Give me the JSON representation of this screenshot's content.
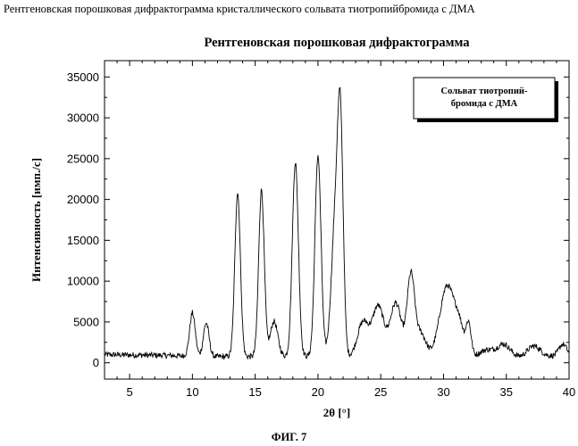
{
  "document": {
    "caption": "Рентгеновская порошковая дифрактограмма кристаллического сольвата тиотропийбромида с ДМА",
    "figure_label": "ФИГ. 7"
  },
  "chart_data": {
    "type": "line",
    "title": "Рентгеновская порошковая дифрактограмма",
    "xlabel": "2θ [°]",
    "ylabel": "Интенсивность [имп./с]",
    "xlim": [
      3,
      40
    ],
    "ylim": [
      -2000,
      37000
    ],
    "xticks": [
      5,
      10,
      15,
      20,
      25,
      30,
      35,
      40
    ],
    "yticks": [
      0,
      5000,
      10000,
      15000,
      20000,
      25000,
      30000,
      35000
    ],
    "grid": false,
    "legend": {
      "position": "top-right",
      "lines": [
        "Сольват тиотропий-",
        "бромида с ДМА"
      ]
    },
    "series": [
      {
        "name": "Сольват тиотропий-бромида с ДМА",
        "baseline": [
          [
            3,
            1000
          ],
          [
            8,
            900
          ],
          [
            12,
            750
          ],
          [
            16,
            750
          ],
          [
            21,
            800
          ],
          [
            23,
            700
          ],
          [
            26,
            500
          ],
          [
            30,
            600
          ],
          [
            33,
            900
          ],
          [
            36,
            700
          ],
          [
            40,
            900
          ]
        ],
        "peaks": [
          {
            "x": 10.0,
            "height": 5300,
            "width": 0.22
          },
          {
            "x": 11.1,
            "height": 4100,
            "width": 0.22
          },
          {
            "x": 13.6,
            "height": 20100,
            "width": 0.22
          },
          {
            "x": 15.5,
            "height": 20400,
            "width": 0.22
          },
          {
            "x": 16.5,
            "height": 4300,
            "width": 0.3
          },
          {
            "x": 18.2,
            "height": 23800,
            "width": 0.24
          },
          {
            "x": 20.0,
            "height": 24600,
            "width": 0.24
          },
          {
            "x": 21.4,
            "height": 17000,
            "width": 0.32
          },
          {
            "x": 21.8,
            "height": 24000,
            "width": 0.22
          },
          {
            "x": 23.6,
            "height": 4300,
            "width": 0.45
          },
          {
            "x": 24.8,
            "height": 6300,
            "width": 0.45
          },
          {
            "x": 26.2,
            "height": 6800,
            "width": 0.45
          },
          {
            "x": 27.4,
            "height": 10000,
            "width": 0.3
          },
          {
            "x": 28.2,
            "height": 3000,
            "width": 0.4
          },
          {
            "x": 30.3,
            "height": 8800,
            "width": 0.6
          },
          {
            "x": 31.3,
            "height": 2800,
            "width": 0.35
          },
          {
            "x": 32.0,
            "height": 3800,
            "width": 0.2
          },
          {
            "x": 33.5,
            "height": 700,
            "width": 0.5
          },
          {
            "x": 34.8,
            "height": 1500,
            "width": 0.5
          },
          {
            "x": 37.2,
            "height": 1300,
            "width": 0.5
          },
          {
            "x": 39.5,
            "height": 1400,
            "width": 0.3
          }
        ],
        "noise": 350,
        "step": 0.04
      }
    ]
  }
}
